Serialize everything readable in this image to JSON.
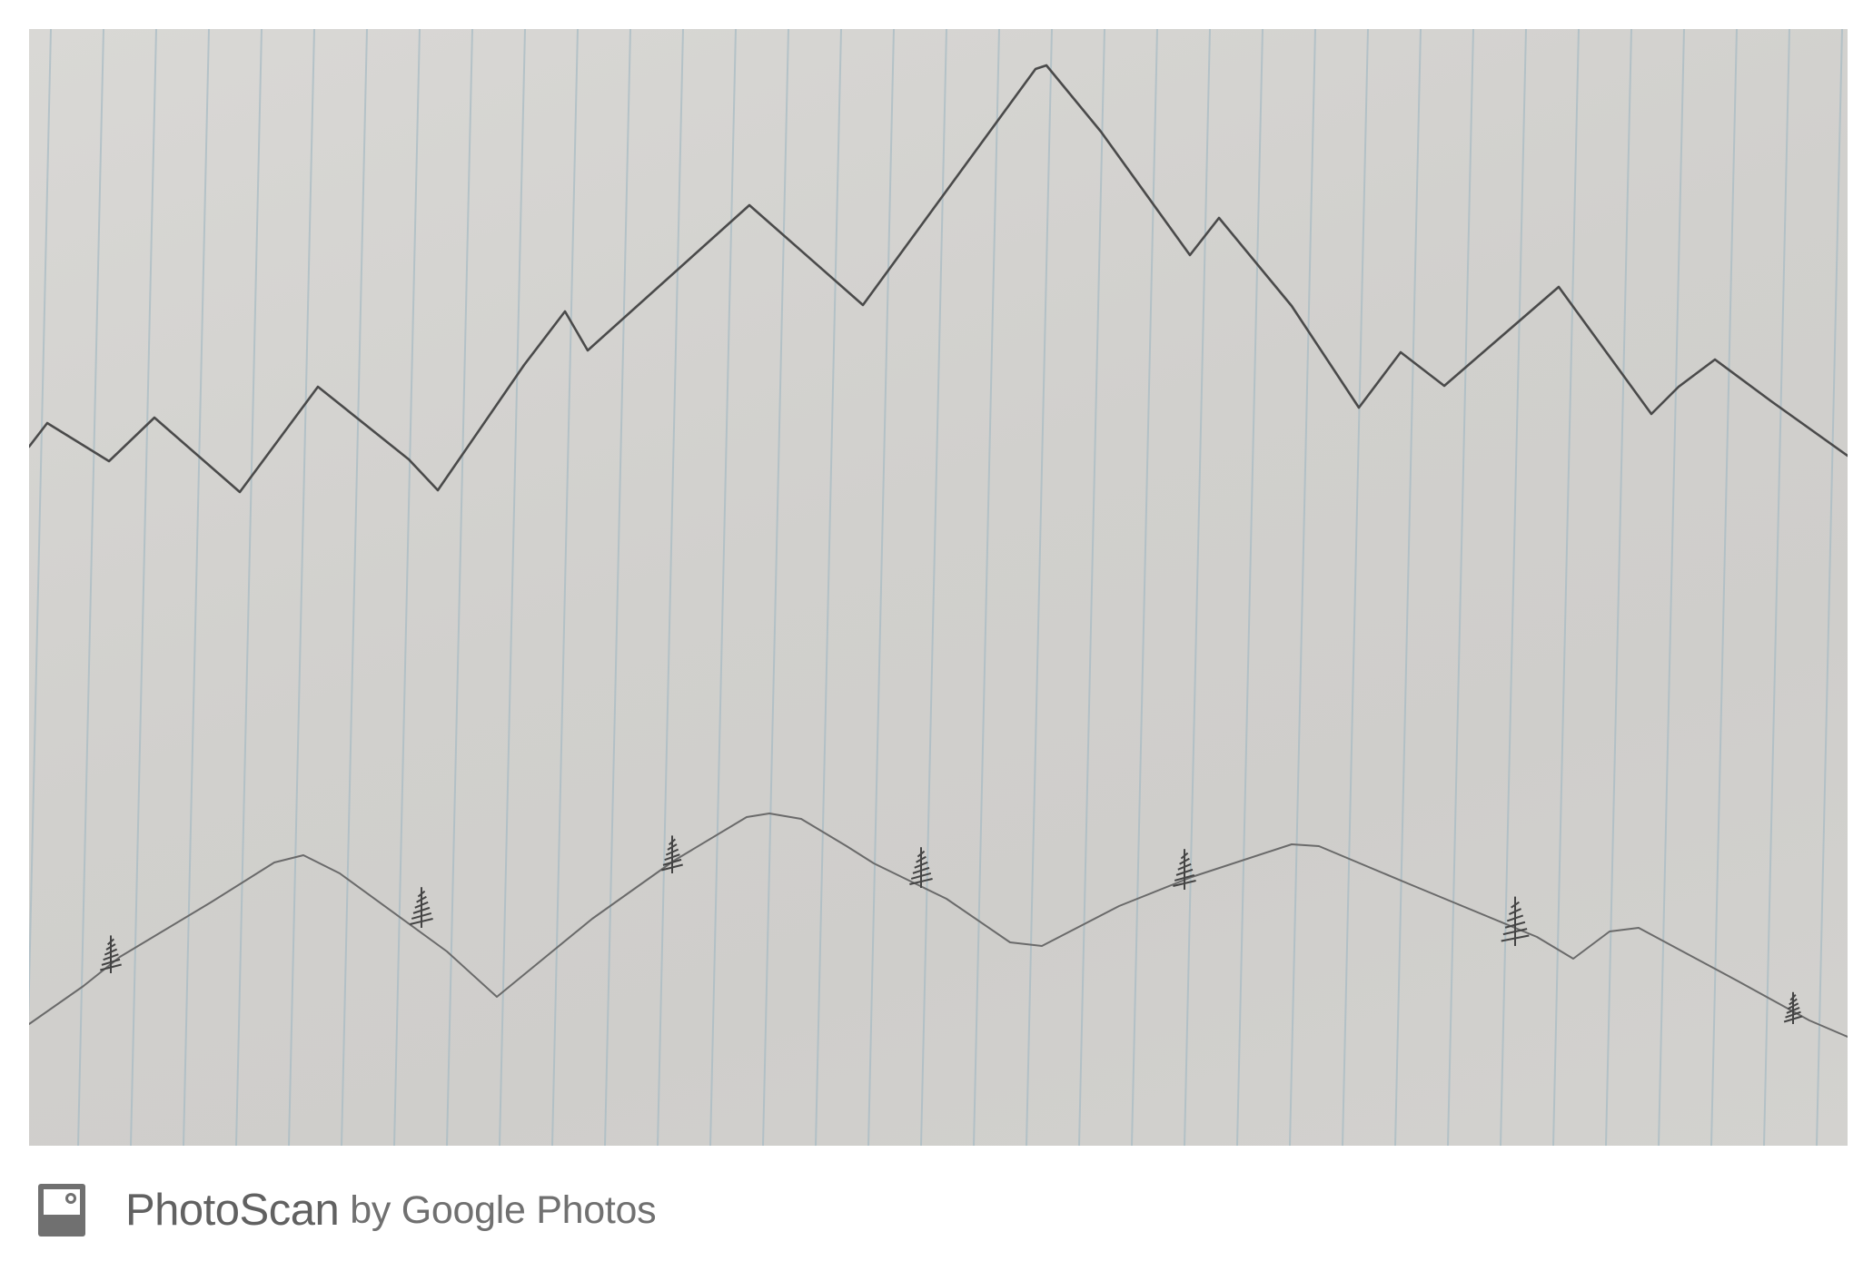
{
  "footer": {
    "app_name": "PhotoScan",
    "byline": "by Google Photos",
    "icon": "photoscan-icon"
  },
  "photo": {
    "subject": "pencil sketch of mountain ridge lines with small pine trees on lined paper",
    "paper_color": "#d4d3d0",
    "rule_color": "#a9bcc4",
    "pencil_color": "#4d4d4d"
  }
}
